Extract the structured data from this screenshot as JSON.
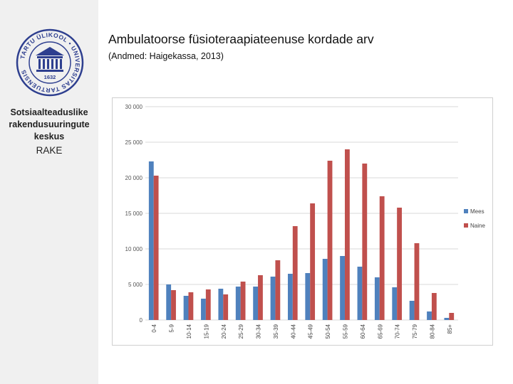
{
  "header": {
    "title": "Ambulatoorse füsioteraapiateenuse kordade arv",
    "subtitle": "(Andmed: Haigekassa, 2013)"
  },
  "sidebar": {
    "logo": {
      "ring_text": "TARTU ÜLIKOOL • UNIVERSITAS TARTUENSIS",
      "year": "1632"
    },
    "org_lines": [
      "Sotsiaalteaduslike",
      "rakendusuuringute",
      "keskus"
    ],
    "org_abbr": "RAKE"
  },
  "colors": {
    "mees": "#4f81bd",
    "naine": "#c0504d",
    "grid": "#d9d9d9",
    "logo": "#2e3f8f"
  },
  "chart_data": {
    "type": "bar",
    "title": "",
    "xlabel": "",
    "ylabel": "",
    "ylim": [
      0,
      30000
    ],
    "yticks": [
      0,
      5000,
      10000,
      15000,
      20000,
      25000,
      30000
    ],
    "ytick_labels": [
      "0",
      "5 000",
      "10 000",
      "15 000",
      "20 000",
      "25 000",
      "30 000"
    ],
    "legend_position": "right",
    "categories": [
      "0-4",
      "5-9",
      "10-14",
      "15-19",
      "20-24",
      "25-29",
      "30-34",
      "35-39",
      "40-44",
      "45-49",
      "50-54",
      "55-59",
      "60-64",
      "65-69",
      "70-74",
      "75-79",
      "80-84",
      "85+"
    ],
    "series": [
      {
        "name": "Mees",
        "values": [
          22300,
          5000,
          3400,
          3000,
          4400,
          4700,
          4700,
          6100,
          6500,
          6600,
          8600,
          9000,
          7500,
          6000,
          4600,
          2700,
          1200,
          300
        ]
      },
      {
        "name": "Naine",
        "values": [
          20300,
          4200,
          3900,
          4300,
          3600,
          5400,
          6300,
          8400,
          13200,
          16400,
          22400,
          24000,
          22000,
          17400,
          15800,
          10800,
          3800,
          1000
        ]
      }
    ]
  }
}
